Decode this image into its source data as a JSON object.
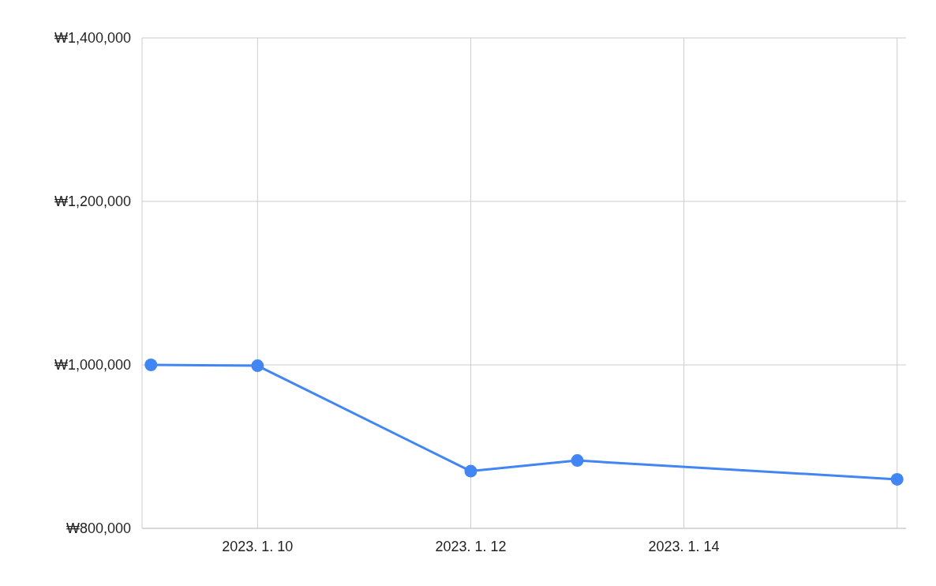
{
  "chart_data": {
    "type": "line",
    "x": [
      "2023-01-09",
      "2023-01-10",
      "2023-01-12",
      "2023-01-13",
      "2023-01-16"
    ],
    "series": [
      {
        "color": "#4285f4",
        "values": [
          1000000,
          999000,
          870000,
          883000,
          860000
        ]
      }
    ],
    "xlim": [
      "2023-01-08T22:00",
      "2023-01-16T02:00"
    ],
    "xticks": [
      {
        "value": "2023-01-10",
        "label": "2023. 1. 10"
      },
      {
        "value": "2023-01-12",
        "label": "2023. 1. 12"
      },
      {
        "value": "2023-01-14",
        "label": "2023. 1. 14"
      },
      {
        "value": "2023-01-16",
        "label": null
      }
    ],
    "ylim": [
      800000,
      1400000
    ],
    "yticks": [
      {
        "value": 800000,
        "label": "₩800,000"
      },
      {
        "value": 1000000,
        "label": "₩1,000,000"
      },
      {
        "value": 1200000,
        "label": "₩1,200,000"
      },
      {
        "value": 1400000,
        "label": "₩1,400,000"
      }
    ],
    "grid": true,
    "marker": "circle",
    "line_style": "solid",
    "legend": false
  }
}
